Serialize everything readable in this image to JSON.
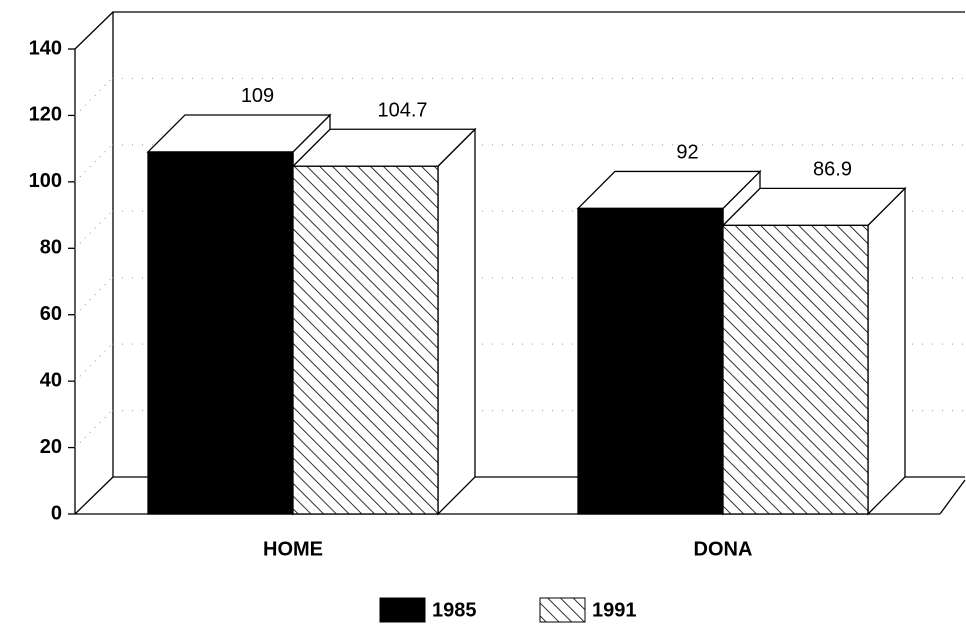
{
  "chart_data": {
    "type": "bar3d",
    "categories": [
      "HOME",
      "DONA"
    ],
    "series": [
      {
        "name": "1985",
        "color": "#000000",
        "hatch": false,
        "values": [
          109,
          92
        ]
      },
      {
        "name": "1991",
        "color": "#000000",
        "hatch": true,
        "values": [
          104.7,
          86.9
        ]
      }
    ],
    "ylim": [
      0,
      140
    ],
    "yticks": [
      0,
      20,
      40,
      60,
      80,
      100,
      120,
      140
    ],
    "grid": true,
    "legend": "bottom"
  }
}
